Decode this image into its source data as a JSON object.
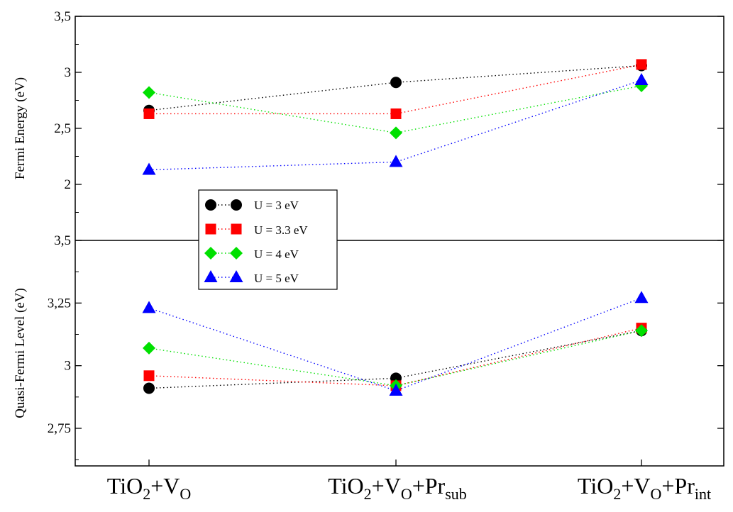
{
  "chart_data": {
    "type": "scatter",
    "categories": [
      {
        "base": "TiO",
        "sub1": "2",
        "mid": "+V",
        "sub2": "O",
        "tail": "",
        "sub3": ""
      },
      {
        "base": "TiO",
        "sub1": "2",
        "mid": "+V",
        "sub2": "O",
        "tail": "+Pr",
        "sub3": "sub"
      },
      {
        "base": "TiO",
        "sub1": "2",
        "mid": "+V",
        "sub2": "O",
        "tail": "+Pr",
        "sub3": "int"
      }
    ],
    "panels": [
      {
        "ylabel": "Fermi Energy (eV)",
        "ylim": [
          1.5,
          3.5
        ],
        "yticks": [
          2,
          2.5,
          3,
          3.5
        ],
        "yticklabels": [
          "2",
          "2,5",
          "3",
          "3,5"
        ],
        "series": [
          {
            "name": "U = 3 eV",
            "values": [
              2.66,
              2.91,
              3.06
            ]
          },
          {
            "name": "U = 3.3 eV",
            "values": [
              2.63,
              2.63,
              3.07
            ]
          },
          {
            "name": "U = 4 eV",
            "values": [
              2.82,
              2.46,
              2.88
            ]
          },
          {
            "name": "U = 5 eV",
            "values": [
              2.13,
              2.2,
              2.93
            ]
          }
        ]
      },
      {
        "ylabel": "Quasi-Fermi Level (eV)",
        "ylim": [
          2.6,
          3.5
        ],
        "yticks": [
          2.75,
          3,
          3.25,
          3.5
        ],
        "yticklabels": [
          "2,75",
          "3",
          "3,25",
          "3,5"
        ],
        "series": [
          {
            "name": "U = 3 eV",
            "values": [
              2.91,
              2.95,
              3.14
            ]
          },
          {
            "name": "U = 3.3 eV",
            "values": [
              2.96,
              2.92,
              3.15
            ]
          },
          {
            "name": "U = 4 eV",
            "values": [
              3.07,
              2.92,
              3.14
            ]
          },
          {
            "name": "U = 5 eV",
            "values": [
              3.23,
              2.9,
              3.27
            ]
          }
        ]
      }
    ],
    "legend": {
      "placement": "inside-left-center",
      "entries": [
        {
          "label": "U = 3 eV",
          "marker": "circle",
          "color": "#000000"
        },
        {
          "label": "U = 3.3 eV",
          "marker": "square",
          "color": "#ff0000"
        },
        {
          "label": "U = 4 eV",
          "marker": "diamond",
          "color": "#00e000"
        },
        {
          "label": "U = 5 eV",
          "marker": "triangle",
          "color": "#0000ff"
        }
      ]
    },
    "line_style": "dotted",
    "grid": false
  }
}
